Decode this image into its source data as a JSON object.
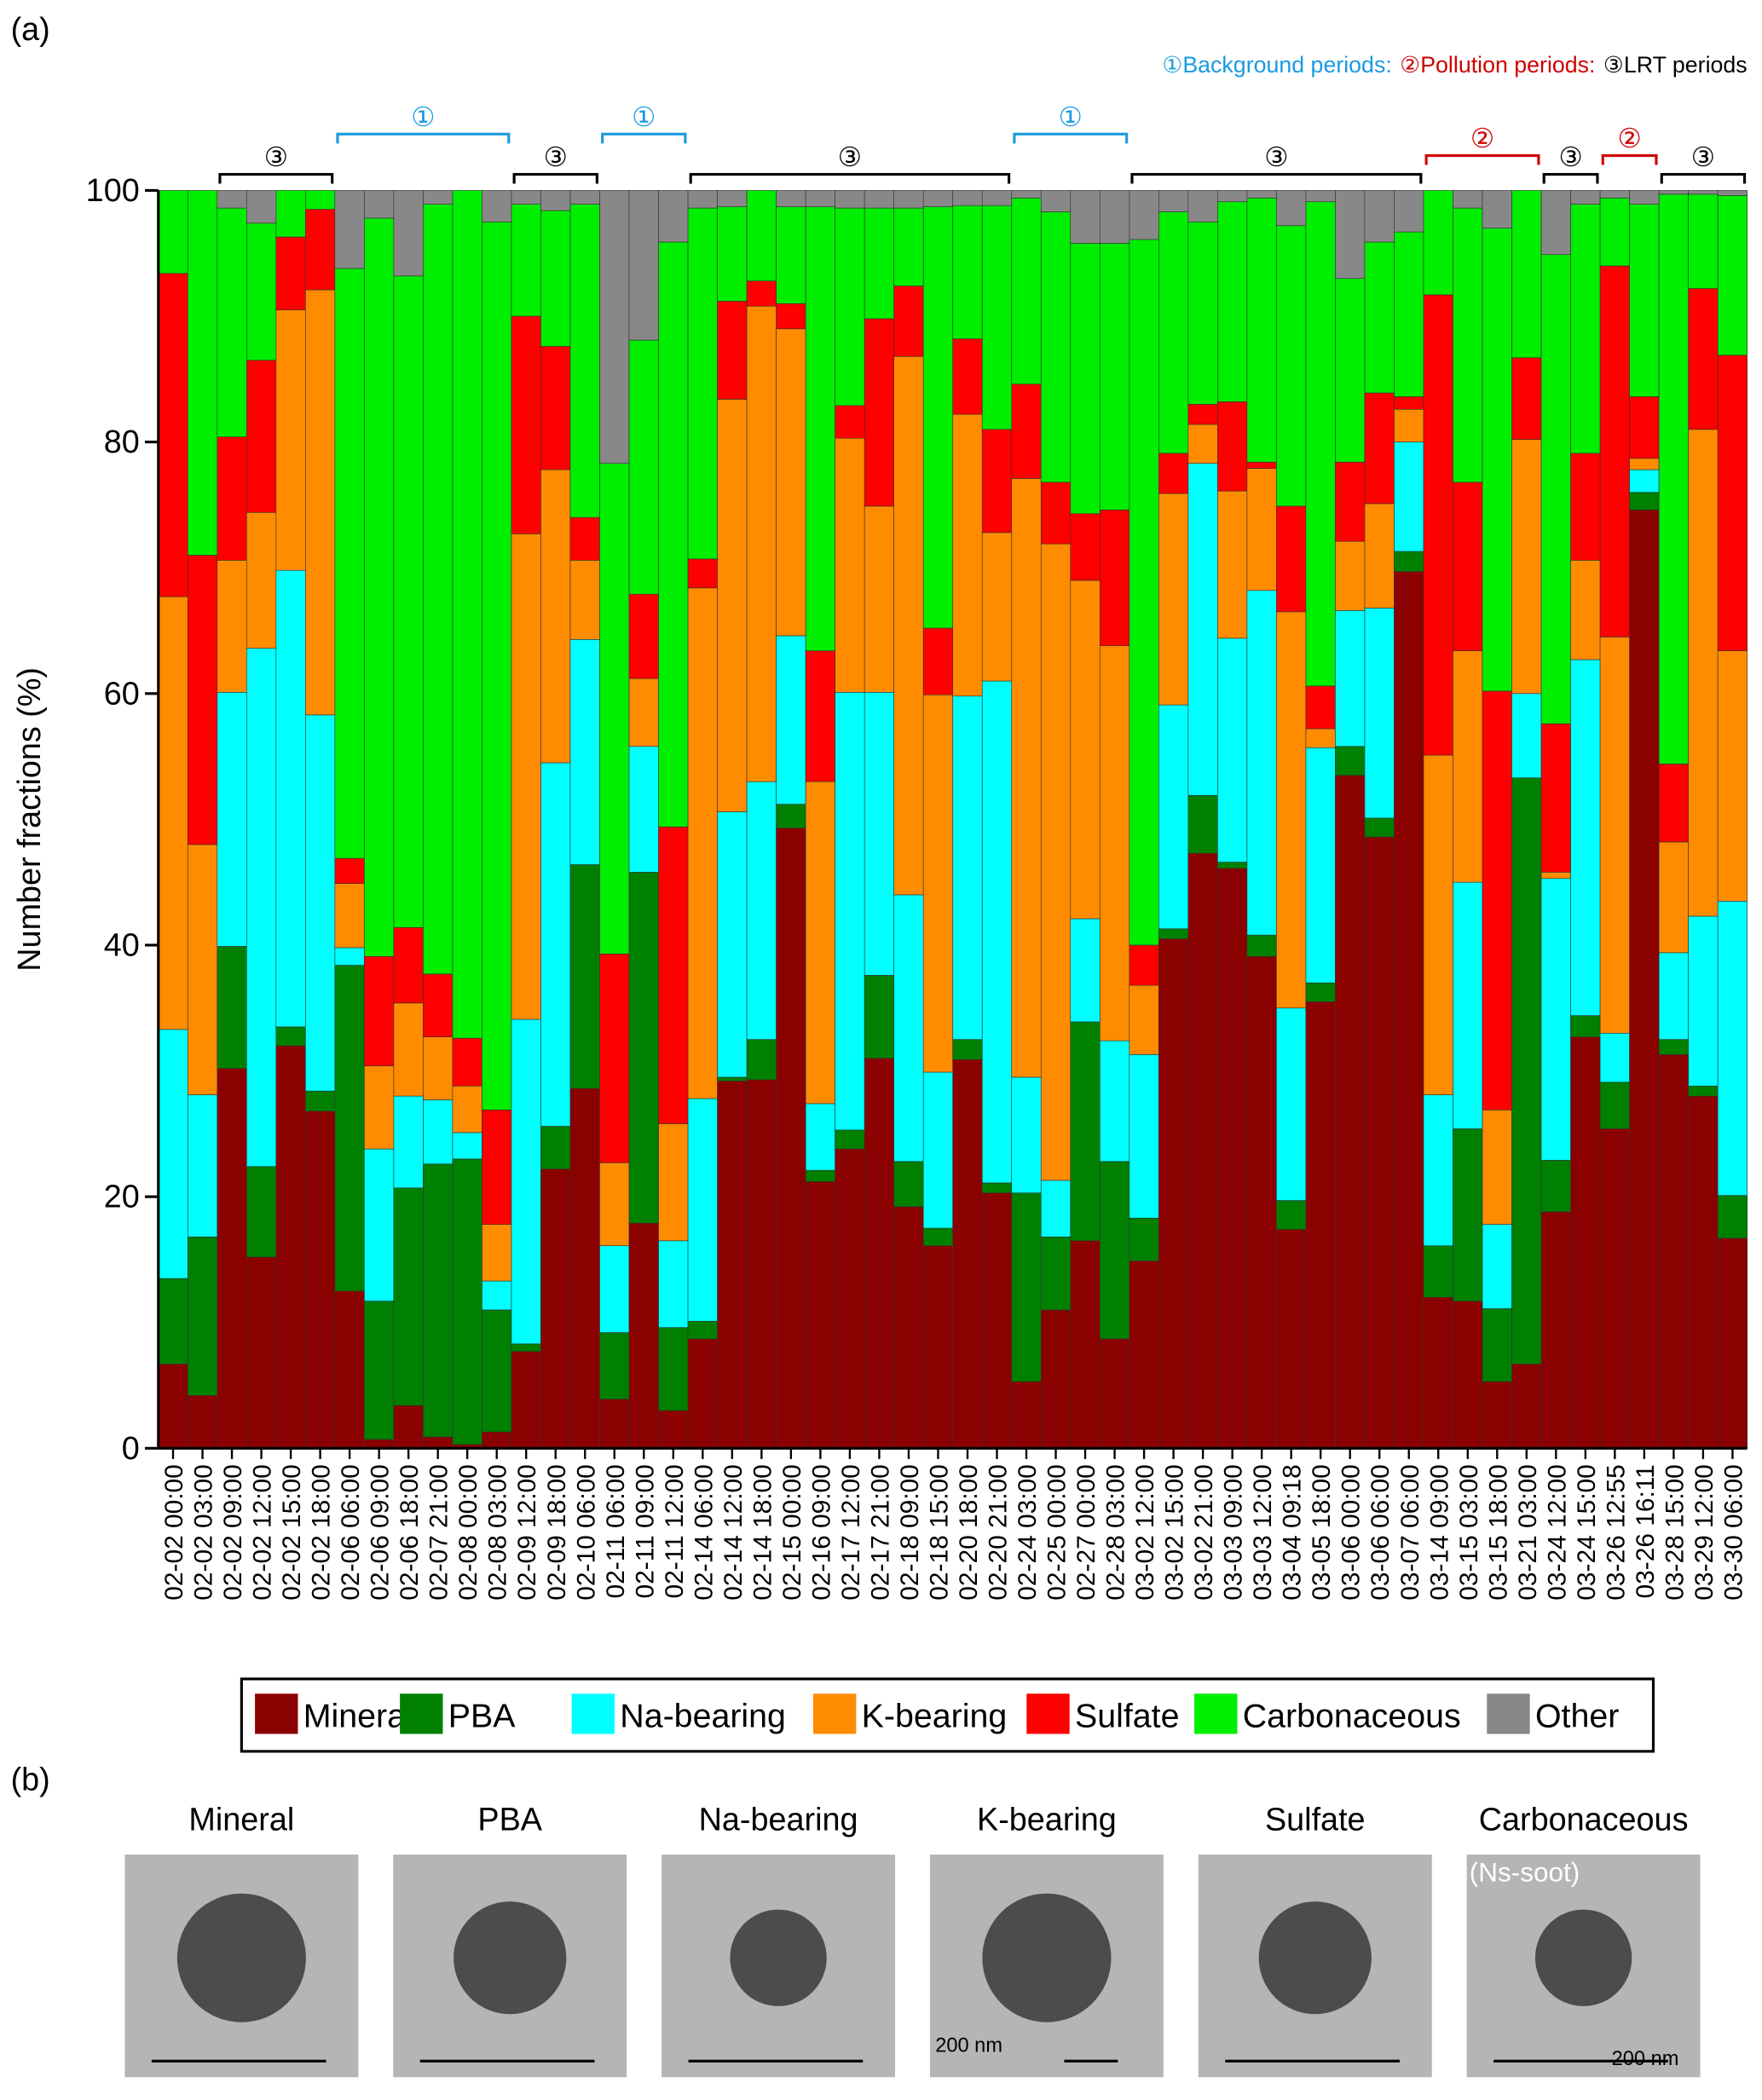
{
  "chart_data": {
    "type": "stacked_bar",
    "panel_label": "(a)",
    "ylabel": "Number fractions (%)",
    "ylim": [
      0,
      100
    ],
    "yticks": [
      0,
      20,
      40,
      60,
      80,
      100
    ],
    "categories": [
      "02-02 00:00",
      "02-02 03:00",
      "02-02 09:00",
      "02-02 12:00",
      "02-02 15:00",
      "02-02 18:00",
      "02-06 06:00",
      "02-06 09:00",
      "02-06 18:00",
      "02-07 21:00",
      "02-08 00:00",
      "02-08 03:00",
      "02-09 12:00",
      "02-09 18:00",
      "02-10 06:00",
      "02-11 06:00",
      "02-11 09:00",
      "02-11 12:00",
      "02-14 06:00",
      "02-14 12:00",
      "02-14 18:00",
      "02-15 00:00",
      "02-16 09:00",
      "02-17 12:00",
      "02-17 21:00",
      "02-18 09:00",
      "02-18 15:00",
      "02-20 18:00",
      "02-20 21:00",
      "02-24 03:00",
      "02-25 00:00",
      "02-27 00:00",
      "02-28 03:00",
      "03-02 12:00",
      "03-02 15:00",
      "03-02 21:00",
      "03-03 09:00",
      "03-03 12:00",
      "03-04 09:18",
      "03-05 18:00",
      "03-06 00:00",
      "03-06 06:00",
      "03-07 06:00",
      "03-14 09:00",
      "03-15 03:00",
      "03-15 18:00",
      "03-21 03:00",
      "03-24 12:00",
      "03-24 15:00",
      "03-26 12:55",
      "03-26 16:11",
      "03-28 15:00",
      "03-29 12:00",
      "03-30 06:00"
    ],
    "series": [
      {
        "name": "Mineral",
        "color": "#8b0000",
        "values": [
          6.7,
          4.2,
          30.2,
          15.2,
          32,
          26.8,
          12.5,
          0.7,
          3.4,
          0.9,
          0.3,
          1.3,
          7.7,
          22.2,
          28.6,
          3.9,
          17.9,
          3,
          8.7,
          29.2,
          29.3,
          49.3,
          21.2,
          23.8,
          31,
          19.2,
          16.1,
          30.9,
          20.3,
          5.3,
          11,
          16.5,
          8.7,
          14.9,
          40.5,
          47.3,
          46.1,
          39.1,
          17.4,
          35.5,
          53.5,
          48.6,
          69.7,
          12,
          11.7,
          5.3,
          6.7,
          18.8,
          32.7,
          25.4,
          74.6,
          31.3,
          28,
          16.7
        ]
      },
      {
        "name": "PBA",
        "color": "#008000",
        "values": [
          6.8,
          12.6,
          9.7,
          7.2,
          1.5,
          1.6,
          25.9,
          11,
          17.3,
          21.7,
          22.7,
          9.7,
          0.6,
          3.4,
          17.8,
          5.3,
          27.9,
          6.6,
          1.4,
          0.3,
          3.2,
          1.9,
          0.9,
          1.5,
          6.6,
          3.6,
          1.4,
          1.6,
          0.8,
          15,
          5.8,
          17.4,
          14.1,
          3.4,
          0.8,
          4.6,
          0.5,
          1.7,
          2.3,
          1.5,
          2.3,
          1.5,
          1.6,
          4.1,
          13.7,
          5.8,
          46.6,
          4.1,
          1.7,
          3.7,
          1.4,
          1.2,
          0.8,
          3.4
        ]
      },
      {
        "name": "Na-bearing",
        "color": "#00ffff",
        "values": [
          19.8,
          11.3,
          20.2,
          41.2,
          36.3,
          29.9,
          1.4,
          12.1,
          7.3,
          5.1,
          2.1,
          2.3,
          25.8,
          28.9,
          17.9,
          6.9,
          10,
          6.9,
          17.7,
          21.1,
          20.5,
          13.4,
          5.3,
          34.8,
          22.5,
          21.2,
          12.4,
          27.3,
          39.9,
          9.2,
          4.5,
          8.2,
          9.6,
          13,
          17.8,
          26.4,
          17.8,
          27.4,
          15.3,
          18.7,
          10.8,
          16.7,
          8.7,
          12,
          19.6,
          6.7,
          6.7,
          22.4,
          28.3,
          3.9,
          1.8,
          6.9,
          13.5,
          23.4
        ]
      },
      {
        "name": "K-bearing",
        "color": "#ff8c00",
        "values": [
          34.4,
          19.9,
          10.5,
          10.8,
          20.7,
          33.8,
          5.1,
          6.6,
          7.4,
          5,
          3.7,
          4.5,
          38.6,
          23.3,
          6.3,
          6.6,
          5.4,
          9.3,
          40.6,
          32.8,
          37.8,
          24.4,
          25.6,
          20.2,
          14.8,
          42.8,
          30,
          22.4,
          11.8,
          47.6,
          50.6,
          26.9,
          31.4,
          5.5,
          16.8,
          3.1,
          11.7,
          9.7,
          31.5,
          1.5,
          5.5,
          8.3,
          2.6,
          27,
          18.4,
          9.1,
          20.2,
          0.5,
          7.9,
          31.5,
          0.9,
          8.8,
          38.7,
          19.9
        ]
      },
      {
        "name": "Sulfate",
        "color": "#ff0000",
        "values": [
          25.7,
          23,
          9.8,
          12.1,
          5.8,
          6.4,
          2,
          8.7,
          6,
          5,
          3.8,
          9.1,
          17.3,
          9.8,
          3.4,
          16.6,
          6.7,
          23.6,
          2.3,
          7.8,
          2,
          2,
          10.4,
          2.6,
          14.9,
          5.6,
          5.3,
          6,
          8.2,
          7.5,
          4.9,
          5.3,
          10.8,
          3.2,
          3.2,
          1.6,
          7.1,
          0.5,
          8.4,
          3.4,
          6.3,
          8.8,
          1,
          36.6,
          13.4,
          33.3,
          6.5,
          11.8,
          8.5,
          29.5,
          4.9,
          6.2,
          11.2,
          23.5
        ]
      },
      {
        "name": "Carbonaceous",
        "color": "#00ee00",
        "values": [
          6.6,
          29,
          18.2,
          10.9,
          3.7,
          1.5,
          46.9,
          58.7,
          51.8,
          61.2,
          67.4,
          70.6,
          8.9,
          10.8,
          24.9,
          39,
          20.2,
          46.5,
          27.9,
          7.5,
          7.2,
          7.7,
          35.3,
          15.7,
          8.8,
          6.2,
          33.5,
          10.6,
          17.8,
          14.8,
          21.5,
          21.5,
          21.2,
          56.1,
          19.2,
          14.5,
          15.9,
          21,
          22.3,
          38.5,
          14.6,
          12,
          13.1,
          8.3,
          21.8,
          36.8,
          13.3,
          37.3,
          19.8,
          5.4,
          15.3,
          45.3,
          7.5,
          12.7
        ]
      },
      {
        "name": "Other",
        "color": "#888888",
        "values": [
          0,
          0,
          1.4,
          2.6,
          0,
          0,
          6.2,
          2.2,
          6.8,
          1.1,
          0,
          2.5,
          1.1,
          1.6,
          1.1,
          21.7,
          11.9,
          4.1,
          1.4,
          1.3,
          0,
          1.3,
          1.3,
          1.4,
          1.4,
          1.4,
          1.3,
          1.2,
          1.2,
          0.6,
          1.7,
          4.2,
          4.2,
          3.9,
          1.7,
          2.5,
          0.9,
          0.6,
          2.8,
          0.9,
          7,
          4.1,
          3.3,
          0,
          1.4,
          3,
          0,
          5.1,
          1.1,
          0.6,
          1.1,
          0.3,
          0.3,
          0.4
        ]
      }
    ],
    "period_legend": [
      {
        "text": "①Background periods:",
        "color": "#1a9be0"
      },
      {
        "text": "②Pollution periods:",
        "color": "#d00000"
      },
      {
        "text": "③LRT periods",
        "color": "#000000"
      }
    ],
    "periods": [
      {
        "label": "③",
        "start": "02-02 09:00",
        "end": "02-02 18:00",
        "color": "#000000"
      },
      {
        "label": "①",
        "start": "02-06 06:00",
        "end": "02-08 03:00",
        "color": "#1a9be0"
      },
      {
        "label": "③",
        "start": "02-09 12:00",
        "end": "02-10 06:00",
        "color": "#000000"
      },
      {
        "label": "①",
        "start": "02-11 06:00",
        "end": "02-11 12:00",
        "color": "#1a9be0"
      },
      {
        "label": "③",
        "start": "02-14 06:00",
        "end": "02-20 21:00",
        "color": "#000000"
      },
      {
        "label": "①",
        "start": "02-24 03:00",
        "end": "02-28 03:00",
        "color": "#1a9be0"
      },
      {
        "label": "③",
        "start": "03-02 12:00",
        "end": "03-07 06:00",
        "color": "#000000"
      },
      {
        "label": "②",
        "start": "03-14 09:00",
        "end": "03-21 03:00",
        "color": "#d00000"
      },
      {
        "label": "③",
        "start": "03-24 12:00",
        "end": "03-24 15:00",
        "color": "#000000"
      },
      {
        "label": "②",
        "start": "03-26 12:55",
        "end": "03-26 16:11",
        "color": "#d00000"
      },
      {
        "label": "③",
        "start": "03-28 15:00",
        "end": "03-30 06:00",
        "color": "#000000"
      }
    ]
  },
  "panel_b": {
    "label": "(b)",
    "images": [
      {
        "title": "Mineral"
      },
      {
        "title": "PBA"
      },
      {
        "title": "Na-bearing"
      },
      {
        "title": "K-bearing",
        "scale_label": "200 nm"
      },
      {
        "title": "Sulfate"
      },
      {
        "title": "Carbonaceous",
        "note": "(Ns-soot)",
        "scale_label": "200 nm"
      }
    ]
  }
}
